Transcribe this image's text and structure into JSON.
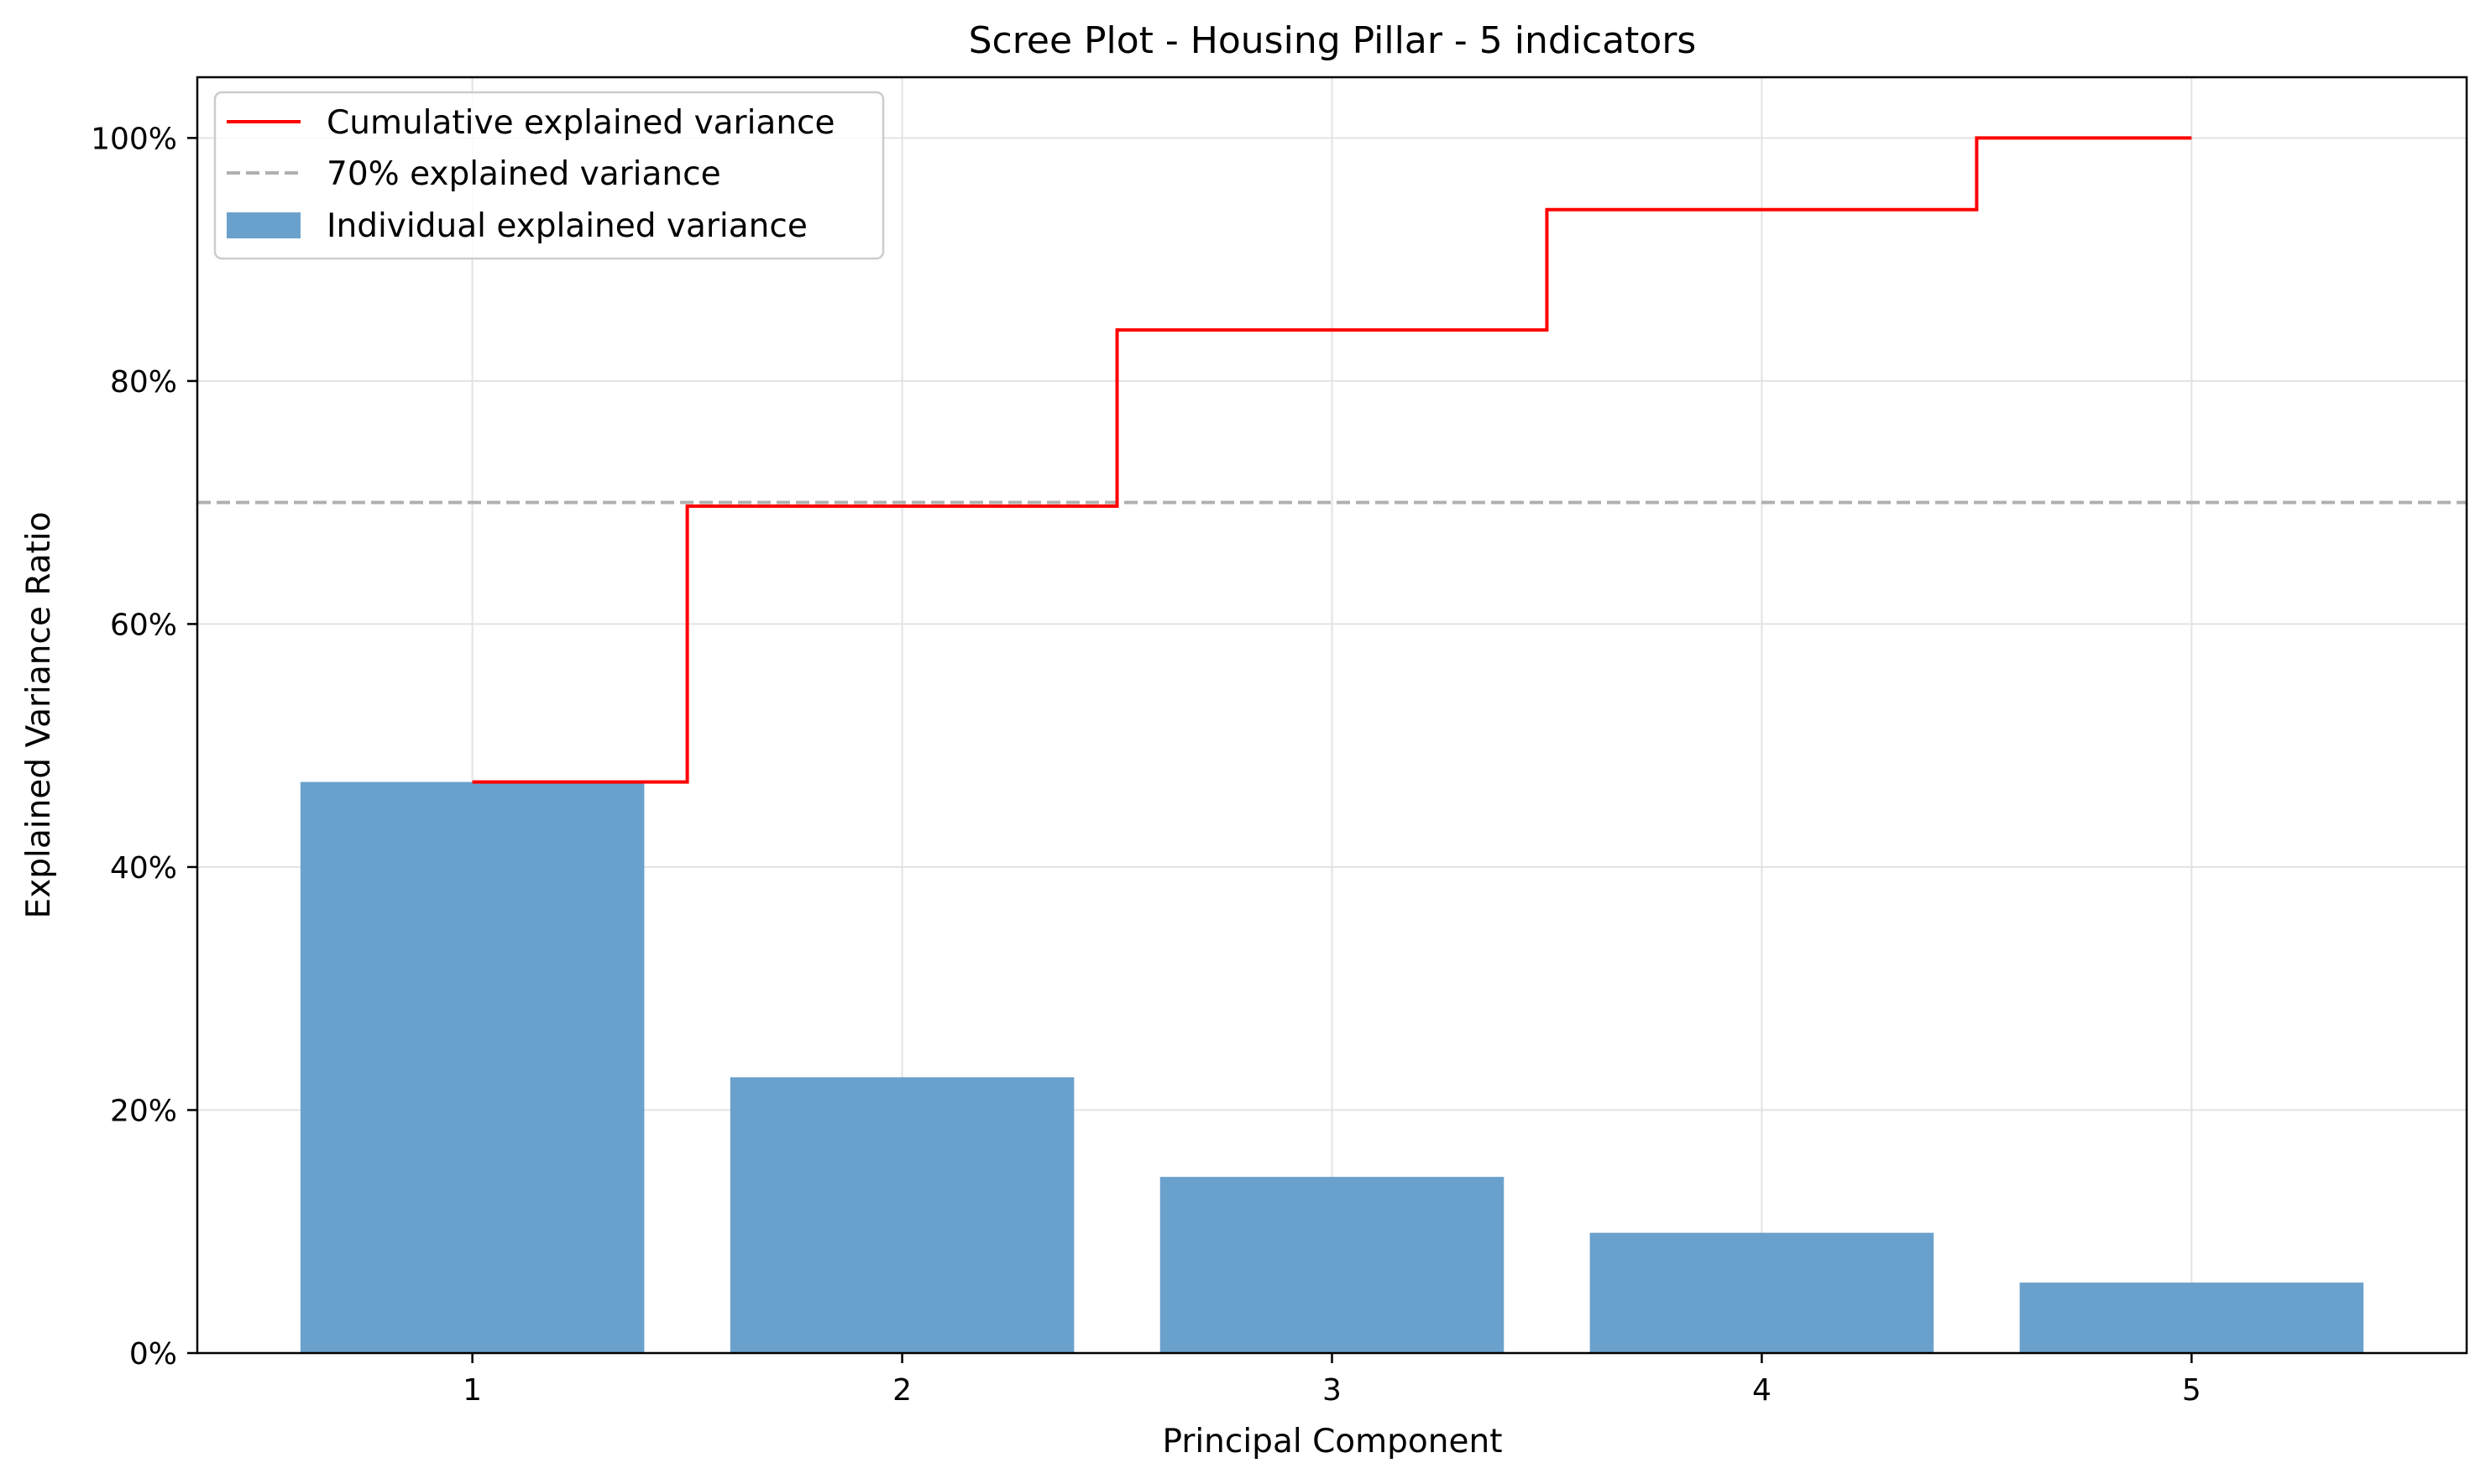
{
  "chart_data": {
    "type": "bar",
    "title": "Scree Plot - Housing Pillar - 5 indicators",
    "xlabel": "Principal Component",
    "ylabel": "Explained Variance Ratio",
    "x": [
      1,
      2,
      3,
      4,
      5
    ],
    "x_tick_labels": [
      "1",
      "2",
      "3",
      "4",
      "5"
    ],
    "xlim": [
      0.36,
      5.64
    ],
    "ylim": [
      0,
      1.05
    ],
    "y_ticks": [
      0,
      0.2,
      0.4,
      0.6,
      0.8,
      1.0
    ],
    "y_tick_labels": [
      "0%",
      "20%",
      "40%",
      "60%",
      "80%",
      "100%"
    ],
    "grid": true,
    "legend_position": "top-left",
    "series": [
      {
        "name": "Individual explained variance",
        "type": "bar",
        "values": [
          0.47,
          0.227,
          0.145,
          0.099,
          0.058
        ],
        "color": "#6aa1cc"
      },
      {
        "name": "Cumulative explained variance",
        "type": "step",
        "values": [
          0.47,
          0.697,
          0.842,
          0.941,
          1.0
        ],
        "color": "#ff0000"
      }
    ],
    "reference_line": {
      "name": "70% explained variance",
      "y": 0.7,
      "style": "dashed",
      "color": "#b0b0b0"
    },
    "legend": [
      "Cumulative explained variance",
      "70% explained variance",
      "Individual explained variance"
    ]
  }
}
